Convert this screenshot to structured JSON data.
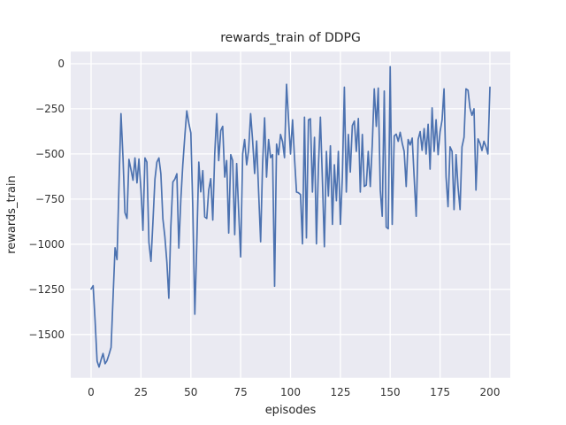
{
  "figure": {
    "kind": "matplotlib-seaborn-figure"
  },
  "style": {
    "figure_background": "#ffffff",
    "axes_background": "#eaeaf2",
    "grid_color": "#ffffff",
    "line_color": "#4c72b0",
    "text_color": "#262626",
    "tick_text_color": "#333333"
  },
  "chart_data": {
    "type": "line",
    "title": "rewards_train of DDPG",
    "xlabel": "episodes",
    "ylabel": "rewards_train",
    "legend": false,
    "grid": true,
    "xlim": [
      -10.2,
      210.2
    ],
    "ylim": [
      -1740,
      67
    ],
    "x_ticks": [
      {
        "value": 0,
        "label": "0"
      },
      {
        "value": 25,
        "label": "25"
      },
      {
        "value": 50,
        "label": "50"
      },
      {
        "value": 75,
        "label": "75"
      },
      {
        "value": 100,
        "label": "100"
      },
      {
        "value": 125,
        "label": "125"
      },
      {
        "value": 150,
        "label": "150"
      },
      {
        "value": 175,
        "label": "175"
      },
      {
        "value": 200,
        "label": "200"
      }
    ],
    "y_ticks": [
      {
        "value": 0,
        "label": "0"
      },
      {
        "value": -250,
        "label": "−250"
      },
      {
        "value": -500,
        "label": "−500"
      },
      {
        "value": -750,
        "label": "−750"
      },
      {
        "value": -1000,
        "label": "−1000"
      },
      {
        "value": -1250,
        "label": "−1250"
      },
      {
        "value": -1500,
        "label": "−1500"
      }
    ],
    "series": [
      {
        "name": "rewards_train",
        "x": {
          "start": 0,
          "step": 1,
          "count": 201
        },
        "values": [
          -1248,
          -1230,
          -1420,
          -1648,
          -1680,
          -1640,
          -1605,
          -1662,
          -1645,
          -1610,
          -1572,
          -1300,
          -1020,
          -1085,
          -660,
          -277,
          -522,
          -825,
          -857,
          -530,
          -587,
          -645,
          -522,
          -660,
          -528,
          -700,
          -923,
          -522,
          -545,
          -990,
          -1095,
          -880,
          -640,
          -545,
          -522,
          -610,
          -860,
          -957,
          -1100,
          -1299,
          -900,
          -655,
          -640,
          -610,
          -1021,
          -750,
          -560,
          -400,
          -261,
          -330,
          -384,
          -800,
          -1388,
          -1000,
          -545,
          -710,
          -592,
          -849,
          -857,
          -700,
          -637,
          -866,
          -500,
          -277,
          -537,
          -371,
          -347,
          -628,
          -537,
          -938,
          -504,
          -537,
          -947,
          -553,
          -820,
          -1070,
          -500,
          -420,
          -560,
          -480,
          -277,
          -430,
          -608,
          -428,
          -706,
          -986,
          -560,
          -300,
          -628,
          -420,
          -520,
          -504,
          -1233,
          -445,
          -504,
          -392,
          -432,
          -520,
          -114,
          -304,
          -500,
          -311,
          -521,
          -711,
          -715,
          -725,
          -998,
          -296,
          -965,
          -311,
          -305,
          -711,
          -408,
          -998,
          -563,
          -296,
          -650,
          -1014,
          -486,
          -733,
          -455,
          -890,
          -560,
          -759,
          -486,
          -890,
          -628,
          -130,
          -711,
          -392,
          -600,
          -343,
          -318,
          -486,
          -304,
          -711,
          -392,
          -680,
          -672,
          -486,
          -680,
          -441,
          -139,
          -347,
          -135,
          -700,
          -845,
          -152,
          -905,
          -914,
          -16,
          -890,
          -400,
          -390,
          -430,
          -380,
          -440,
          -486,
          -680,
          -420,
          -450,
          -412,
          -628,
          -845,
          -420,
          -376,
          -480,
          -359,
          -500,
          -335,
          -584,
          -245,
          -486,
          -310,
          -504,
          -377,
          -310,
          -139,
          -628,
          -792,
          -461,
          -486,
          -808,
          -504,
          -682,
          -808,
          -461,
          -408,
          -139,
          -147,
          -245,
          -286,
          -250,
          -700,
          -416,
          -440,
          -481,
          -430,
          -460,
          -500,
          -130
        ]
      }
    ]
  }
}
